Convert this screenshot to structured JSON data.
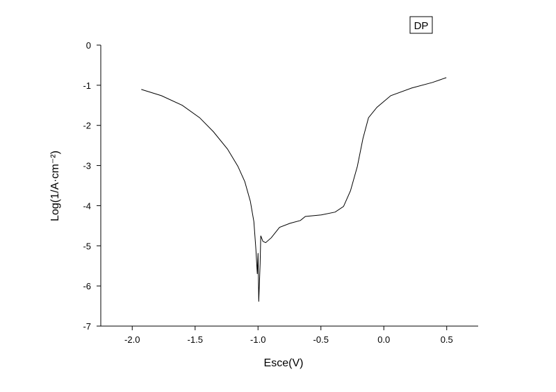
{
  "chart_data": {
    "type": "line",
    "x_label": "Esce(V)",
    "y_label": "Log(1/A·cm⁻²)",
    "xlim": [
      -2.25,
      0.75
    ],
    "ylim": [
      -7,
      0
    ],
    "xticks": [
      {
        "value": -2,
        "label": "-2.0"
      },
      {
        "value": -1.5,
        "label": "-1.5"
      },
      {
        "value": -1,
        "label": "-1.0"
      },
      {
        "value": -0.5,
        "label": "-0.5"
      },
      {
        "value": 0,
        "label": "0.0"
      },
      {
        "value": 0.5,
        "label": "0.5"
      }
    ],
    "yticks": [
      0,
      -1,
      -2,
      -3,
      -4,
      -5,
      -6,
      -7
    ],
    "legend": "top-right",
    "series": [
      {
        "name": "DP",
        "color": "#000000",
        "x": [
          -1.928,
          -1.768,
          -1.602,
          -1.464,
          -1.354,
          -1.243,
          -1.16,
          -1.105,
          -1.061,
          -1.033,
          -1.017,
          -1.006,
          -1.0,
          -0.994,
          -0.983,
          -0.978,
          -0.961,
          -0.939,
          -0.895,
          -0.829,
          -0.746,
          -0.663,
          -0.624,
          -0.497,
          -0.387,
          -0.32,
          -0.265,
          -0.21,
          -0.166,
          -0.122,
          -0.055,
          0.055,
          0.221,
          0.387,
          0.497
        ],
        "values": [
          -1.105,
          -1.26,
          -1.5,
          -1.81,
          -2.16,
          -2.59,
          -3.02,
          -3.4,
          -3.89,
          -4.4,
          -5.09,
          -5.7,
          -5.18,
          -6.39,
          -5.44,
          -4.75,
          -4.89,
          -4.92,
          -4.8,
          -4.54,
          -4.44,
          -4.37,
          -4.27,
          -4.23,
          -4.16,
          -4.02,
          -3.63,
          -3.02,
          -2.33,
          -1.81,
          -1.55,
          -1.26,
          -1.07,
          -0.93,
          -0.81
        ]
      }
    ]
  }
}
